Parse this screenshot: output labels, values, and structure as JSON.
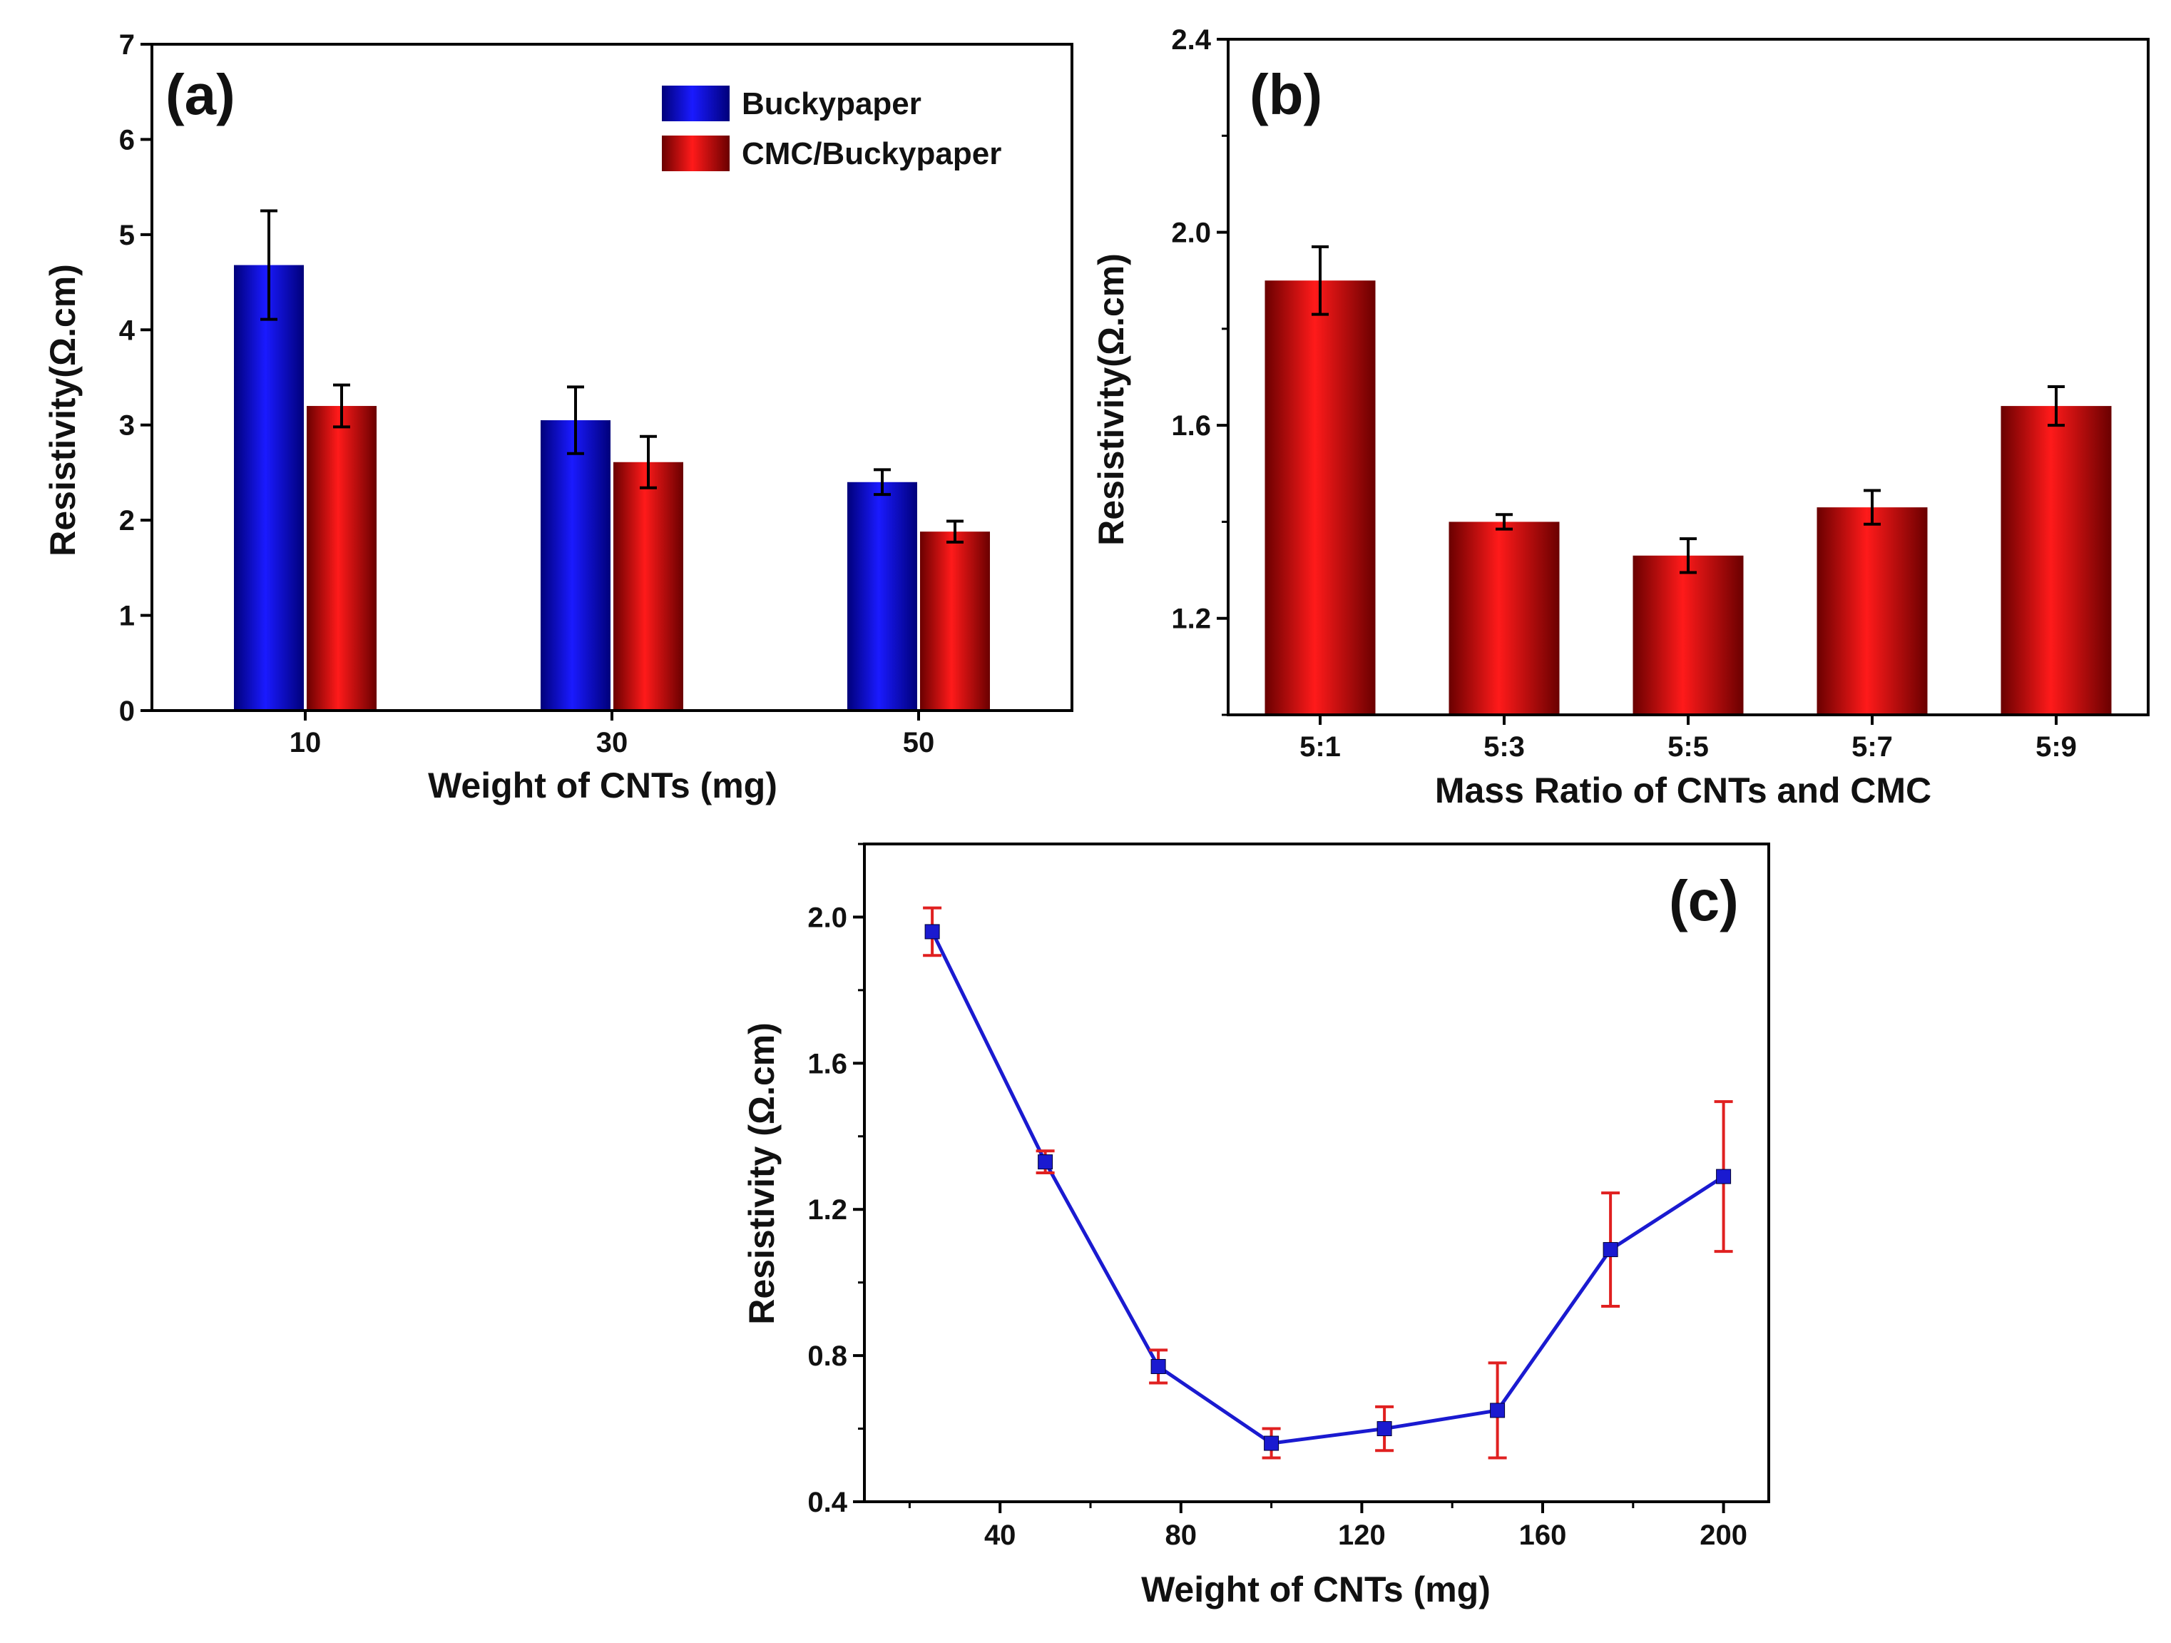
{
  "chart_data": [
    {
      "id": "a",
      "type": "bar",
      "panel_label": "(a)",
      "title": "",
      "xlabel": "Weight of CNTs (mg)",
      "ylabel": "Resistivity(Ω.cm)",
      "categories": [
        "10",
        "30",
        "50"
      ],
      "ylim": [
        0,
        7
      ],
      "yticks": [
        "0",
        "1",
        "2",
        "3",
        "4",
        "5",
        "6",
        "7"
      ],
      "legend_position": "top-right",
      "series": [
        {
          "name": "Buckypaper",
          "values": [
            4.68,
            3.05,
            2.4
          ],
          "errors": [
            0.57,
            0.35,
            0.13
          ],
          "color": "#1414e6"
        },
        {
          "name": "CMC/Buckypaper",
          "values": [
            3.2,
            2.61,
            1.88
          ],
          "errors": [
            0.22,
            0.27,
            0.11
          ],
          "color": "#e61414"
        }
      ]
    },
    {
      "id": "b",
      "type": "bar",
      "panel_label": "(b)",
      "title": "",
      "xlabel": "Mass Ratio of  CNTs and CMC",
      "ylabel": "Resistivity(Ω.cm)",
      "categories": [
        "5:1",
        "5:3",
        "5:5",
        "5:7",
        "5:9"
      ],
      "ylim": [
        1.0,
        2.4
      ],
      "yticks": [
        "1.2",
        "1.6",
        "2.0",
        "2.4"
      ],
      "series": [
        {
          "name": "Resistivity",
          "values": [
            1.9,
            1.4,
            1.33,
            1.43,
            1.64
          ],
          "errors": [
            0.07,
            0.015,
            0.035,
            0.035,
            0.04
          ],
          "color": "#e61414"
        }
      ]
    },
    {
      "id": "c",
      "type": "line",
      "panel_label": "(c)",
      "title": "",
      "xlabel": "Weight of CNTs (mg)",
      "ylabel": "Resistivity (Ω.cm)",
      "x": [
        25,
        50,
        75,
        100,
        125,
        150,
        175,
        200
      ],
      "y": [
        1.96,
        1.33,
        0.77,
        0.56,
        0.6,
        0.65,
        1.09,
        1.29
      ],
      "errors": [
        0.065,
        0.03,
        0.045,
        0.04,
        0.06,
        0.13,
        0.155,
        0.205
      ],
      "xlim": [
        10,
        210
      ],
      "ylim": [
        0.4,
        2.2
      ],
      "xticks": [
        "40",
        "80",
        "120",
        "160",
        "200"
      ],
      "yticks": [
        "0.4",
        "0.8",
        "1.2",
        "1.6",
        "2.0"
      ],
      "line_color": "#1a1ad0",
      "marker_color": "#1a1ad0",
      "error_color": "#e02020"
    }
  ]
}
